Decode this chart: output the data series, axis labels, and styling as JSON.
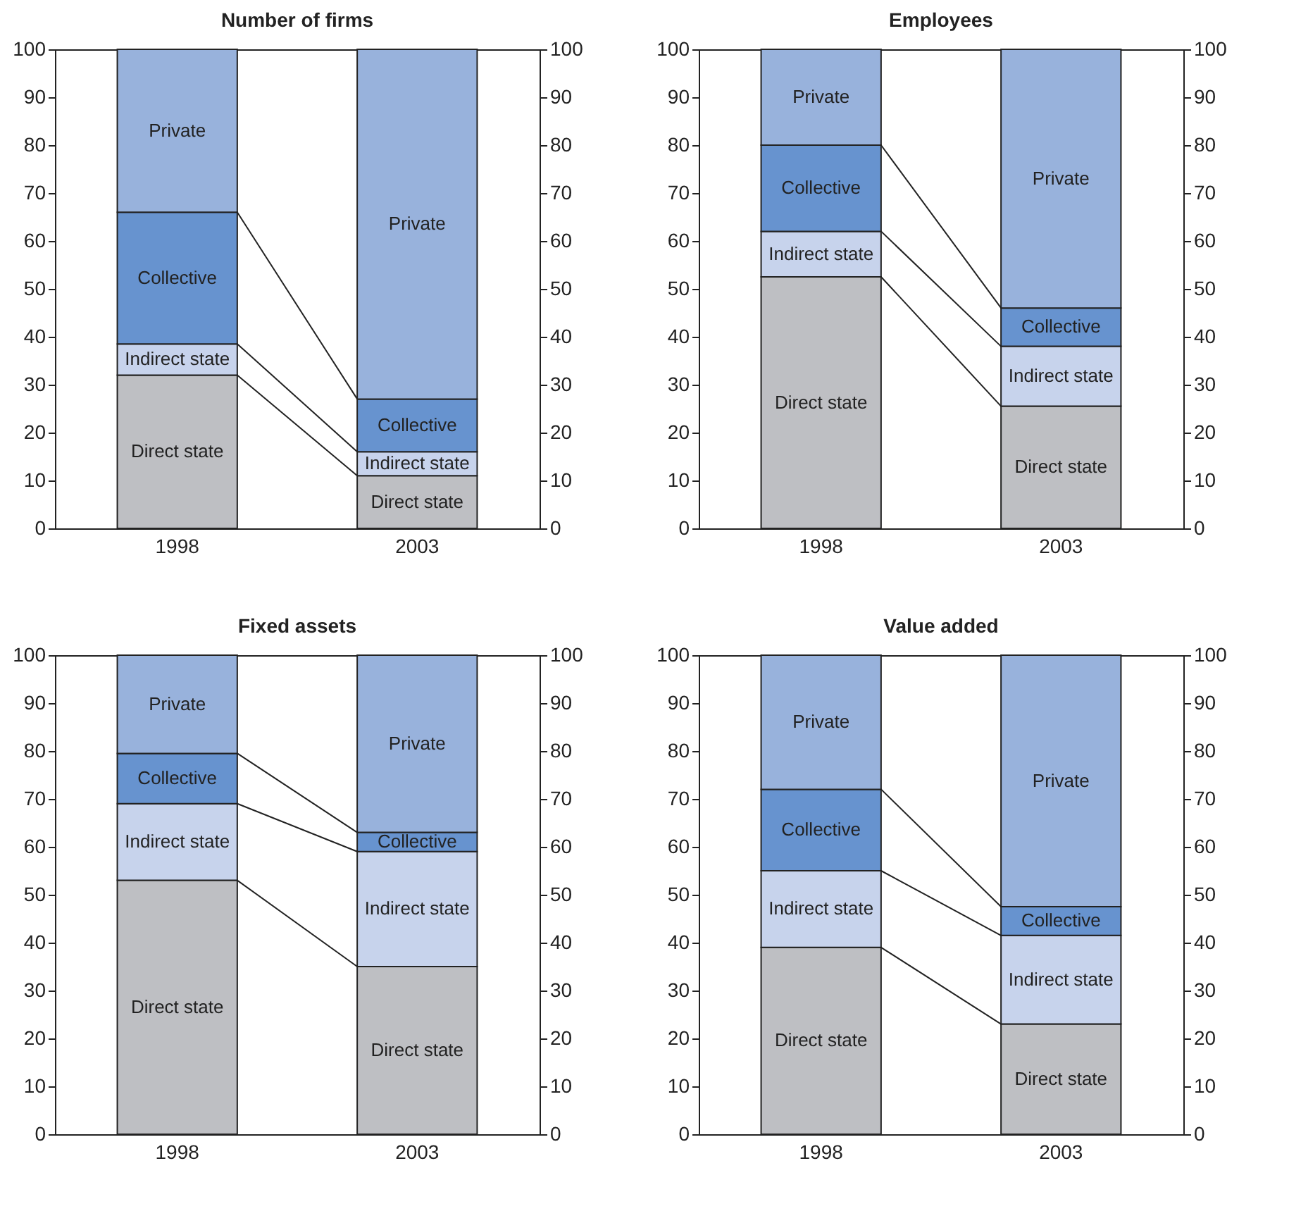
{
  "chart_data": [
    {
      "type": "bar",
      "stacked": true,
      "title": "Number of firms",
      "categories": [
        "1998",
        "2003"
      ],
      "ylim": [
        0,
        100
      ],
      "yticks": [
        0,
        10,
        20,
        30,
        40,
        50,
        60,
        70,
        80,
        90,
        100
      ],
      "y2lim": [
        0,
        100
      ],
      "y2ticks": [
        0,
        10,
        20,
        30,
        40,
        50,
        60,
        70,
        80,
        90,
        100
      ],
      "grid": false,
      "legend": false,
      "series": [
        {
          "name": "Direct state",
          "color": "#bebfc3",
          "values": [
            32,
            11
          ]
        },
        {
          "name": "Indirect state",
          "color": "#c7d3ec",
          "values": [
            6.5,
            5
          ]
        },
        {
          "name": "Collective",
          "color": "#6793cf",
          "values": [
            27.5,
            11
          ]
        },
        {
          "name": "Private",
          "color": "#98b2dc",
          "values": [
            34,
            73
          ]
        }
      ]
    },
    {
      "type": "bar",
      "stacked": true,
      "title": "Employees",
      "categories": [
        "1998",
        "2003"
      ],
      "ylim": [
        0,
        100
      ],
      "yticks": [
        0,
        10,
        20,
        30,
        40,
        50,
        60,
        70,
        80,
        90,
        100
      ],
      "y2lim": [
        0,
        100
      ],
      "y2ticks": [
        0,
        10,
        20,
        30,
        40,
        50,
        60,
        70,
        80,
        90,
        100
      ],
      "grid": false,
      "legend": false,
      "series": [
        {
          "name": "Direct state",
          "color": "#bebfc3",
          "values": [
            52.5,
            25.5
          ]
        },
        {
          "name": "Indirect state",
          "color": "#c7d3ec",
          "values": [
            9.5,
            12.5
          ]
        },
        {
          "name": "Collective",
          "color": "#6793cf",
          "values": [
            18,
            8
          ]
        },
        {
          "name": "Private",
          "color": "#98b2dc",
          "values": [
            20,
            54
          ]
        }
      ]
    },
    {
      "type": "bar",
      "stacked": true,
      "title": "Fixed assets",
      "categories": [
        "1998",
        "2003"
      ],
      "ylim": [
        0,
        100
      ],
      "yticks": [
        0,
        10,
        20,
        30,
        40,
        50,
        60,
        70,
        80,
        90,
        100
      ],
      "y2lim": [
        0,
        100
      ],
      "y2ticks": [
        0,
        10,
        20,
        30,
        40,
        50,
        60,
        70,
        80,
        90,
        100
      ],
      "grid": false,
      "legend": false,
      "series": [
        {
          "name": "Direct state",
          "color": "#bebfc3",
          "values": [
            53,
            35
          ]
        },
        {
          "name": "Indirect state",
          "color": "#c7d3ec",
          "values": [
            16,
            24
          ]
        },
        {
          "name": "Collective",
          "color": "#6793cf",
          "values": [
            10.5,
            4
          ]
        },
        {
          "name": "Private",
          "color": "#98b2dc",
          "values": [
            20.5,
            37
          ]
        }
      ]
    },
    {
      "type": "bar",
      "stacked": true,
      "title": "Value added",
      "categories": [
        "1998",
        "2003"
      ],
      "ylim": [
        0,
        100
      ],
      "yticks": [
        0,
        10,
        20,
        30,
        40,
        50,
        60,
        70,
        80,
        90,
        100
      ],
      "y2lim": [
        0,
        100
      ],
      "y2ticks": [
        0,
        10,
        20,
        30,
        40,
        50,
        60,
        70,
        80,
        90,
        100
      ],
      "grid": false,
      "legend": false,
      "series": [
        {
          "name": "Direct state",
          "color": "#bebfc3",
          "values": [
            39,
            23
          ]
        },
        {
          "name": "Indirect state",
          "color": "#c7d3ec",
          "values": [
            16,
            18.5
          ]
        },
        {
          "name": "Collective",
          "color": "#6793cf",
          "values": [
            17,
            6
          ]
        },
        {
          "name": "Private",
          "color": "#98b2dc",
          "values": [
            28,
            52.5
          ]
        }
      ]
    }
  ]
}
